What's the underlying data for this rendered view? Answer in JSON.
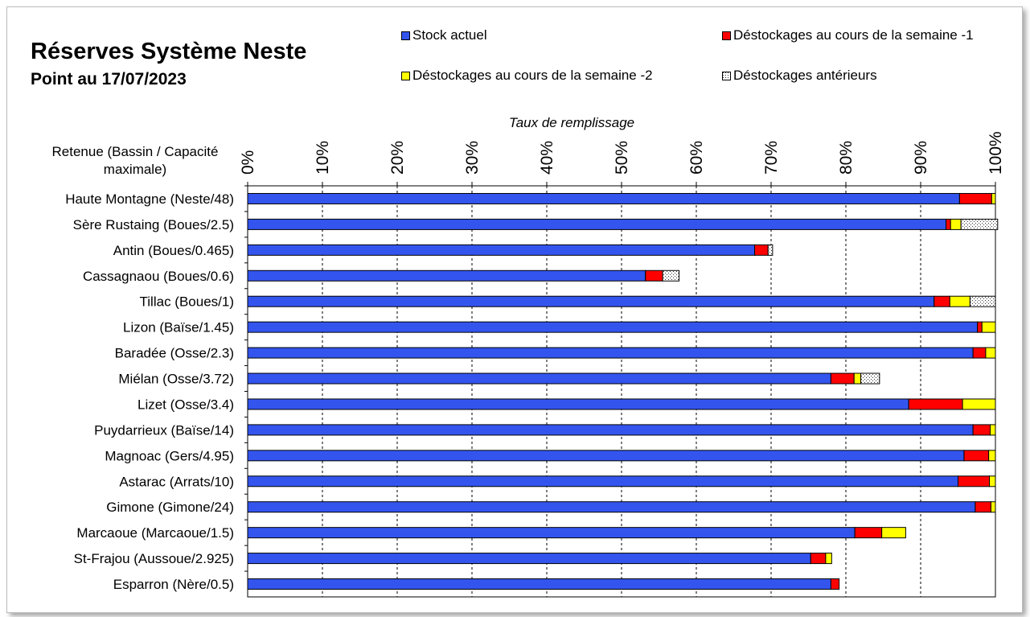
{
  "chart_data": {
    "type": "bar",
    "orientation": "horizontal",
    "stacked": true,
    "title": "Réserves Système Neste",
    "subtitle": "Point au 17/07/2023",
    "xlabel": "Taux de remplissage",
    "ylabel": "Retenue (Bassin / Capacité maximale)",
    "xlim": [
      0,
      100
    ],
    "xticks": [
      "0%",
      "10%",
      "20%",
      "30%",
      "40%",
      "50%",
      "60%",
      "70%",
      "80%",
      "90%",
      "100%"
    ],
    "grid": "vertical dashed",
    "legend_position": "top",
    "categories": [
      "Haute Montagne (Neste/48)",
      "Sère Rustaing (Boues/2.5)",
      "Antin (Boues/0.465)",
      "Cassagnaou (Boues/0.6)",
      "Tillac (Boues/1)",
      "Lizon (Baïse/1.45)",
      "Baradée (Osse/2.3)",
      "Miélan (Osse/3.72)",
      "Lizet (Osse/3.4)",
      "Puydarrieux (Baïse/14)",
      "Magnoac (Gers/4.95)",
      "Astarac (Arrats/10)",
      "Gimone (Gimone/24)",
      "Marcaoue (Marcaoue/1.5)",
      "St-Frajou (Aussoue/2.925)",
      "Esparron (Nère/0.5)"
    ],
    "series": [
      {
        "name": "Stock actuel",
        "color": "#3355ee",
        "pattern": "solid",
        "values": [
          95.2,
          93.4,
          67.8,
          53.2,
          91.8,
          97.6,
          97.0,
          78.0,
          88.4,
          97.0,
          95.8,
          95.0,
          97.3,
          81.2,
          75.3,
          78.0
        ]
      },
      {
        "name": "Déstockages au cours de la semaine -1",
        "color": "#ff0000",
        "pattern": "solid",
        "values": [
          4.3,
          0.6,
          1.8,
          2.3,
          2.1,
          0.6,
          1.7,
          3.1,
          7.2,
          2.3,
          3.3,
          4.2,
          2.1,
          3.6,
          2.0,
          1.1
        ]
      },
      {
        "name": "Déstockages au cours de la semaine -2",
        "color": "#ffff00",
        "pattern": "solid",
        "values": [
          0.5,
          1.4,
          0.0,
          0.0,
          2.7,
          1.8,
          1.3,
          0.9,
          4.4,
          0.7,
          0.9,
          0.8,
          0.6,
          3.2,
          0.8,
          0.0
        ]
      },
      {
        "name": "Déstockages antérieurs",
        "color": "#ffffff",
        "pattern": "dotted",
        "values": [
          0.0,
          4.9,
          0.6,
          2.2,
          3.4,
          0.0,
          0.0,
          2.5,
          0.0,
          0.0,
          0.0,
          0.0,
          0.0,
          0.0,
          0.0,
          0.0
        ]
      }
    ]
  }
}
